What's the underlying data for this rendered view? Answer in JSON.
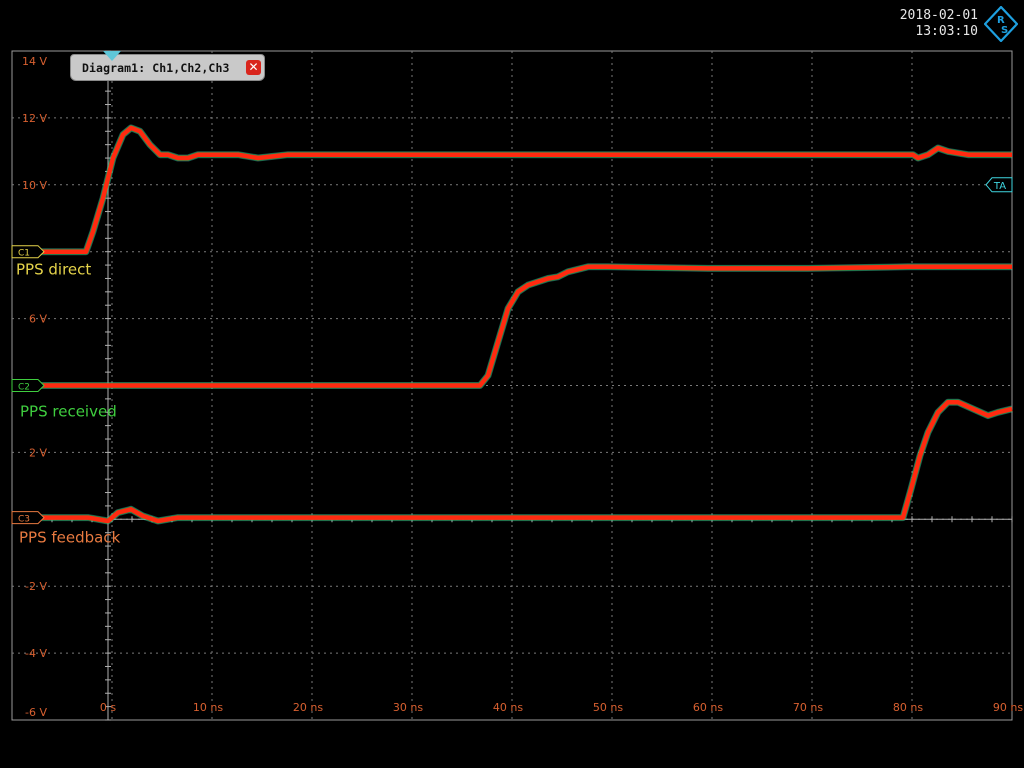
{
  "header": {
    "date": "2018-02-01",
    "time": "13:03:10",
    "logo_text": "R&S"
  },
  "diagram_tab": {
    "label": "Diagram1: Ch1,Ch2,Ch3",
    "close_icon": "close-icon"
  },
  "colors": {
    "trace": "#ff2a10",
    "ch1": "#e5d34a",
    "ch2": "#3fce3f",
    "ch3": "#e87a40",
    "trigger": "#3fd6e0",
    "grid": "#7a7a7a",
    "tick_label": "#d86030"
  },
  "markers": {
    "c1": "C1",
    "c2": "C2",
    "c3": "C3",
    "trigger": "TA"
  },
  "chart_data": {
    "type": "line",
    "title": "",
    "xlabel": "",
    "ylabel": "",
    "xlim": [
      -9.6,
      90.4
    ],
    "ylim": [
      -6,
      14
    ],
    "x_ticks": [
      0,
      10,
      20,
      30,
      40,
      50,
      60,
      70,
      80,
      90
    ],
    "x_tick_labels": [
      "0 s",
      "10 ns",
      "20 ns",
      "30 ns",
      "40 ns",
      "50 ns",
      "60 ns",
      "70 ns",
      "80 ns",
      "90 ns"
    ],
    "y_ticks": [
      14,
      12,
      10,
      6,
      2,
      -2,
      -4,
      -6
    ],
    "y_tick_labels": [
      "14 V",
      "12 V",
      "10 V",
      "6 V",
      "2 V",
      "-2 V",
      "-4 V",
      "-6 V"
    ],
    "grid": true,
    "series": [
      {
        "name": "PPS direct",
        "x": [
          -9.6,
          -2.2,
          -1.5,
          -0.5,
          0.5,
          1.5,
          2.3,
          3.2,
          4.2,
          5.2,
          6.0,
          7.0,
          8.0,
          9.0,
          10.5,
          13.0,
          15.0,
          18.0,
          20.0,
          30.0,
          50.0,
          70.0,
          80.5,
          81.0,
          82.0,
          83.0,
          84.0,
          86.0,
          88.0,
          90.4
        ],
        "y": [
          8.0,
          8.0,
          8.6,
          9.6,
          10.8,
          11.5,
          11.7,
          11.6,
          11.2,
          10.9,
          10.9,
          10.8,
          10.8,
          10.9,
          10.9,
          10.9,
          10.8,
          10.9,
          10.9,
          10.9,
          10.9,
          10.9,
          10.9,
          10.8,
          10.9,
          11.1,
          11.0,
          10.9,
          10.9,
          10.9
        ]
      },
      {
        "name": "PPS received",
        "x": [
          -9.6,
          37.2,
          38.0,
          39.0,
          40.0,
          41.0,
          42.0,
          43.0,
          44.0,
          45.0,
          46.0,
          48.0,
          50.0,
          60.0,
          70.0,
          80.0,
          90.4
        ],
        "y": [
          4.0,
          4.0,
          4.3,
          5.3,
          6.3,
          6.8,
          7.0,
          7.1,
          7.2,
          7.25,
          7.4,
          7.55,
          7.55,
          7.5,
          7.5,
          7.55,
          7.55
        ]
      },
      {
        "name": "PPS feedback",
        "x": [
          -9.6,
          -2.0,
          0.0,
          1.0,
          2.3,
          3.5,
          5.0,
          7.0,
          10.0,
          30.0,
          50.0,
          70.0,
          79.0,
          79.5,
          80.3,
          81.2,
          82.0,
          83.0,
          84.0,
          85.0,
          86.5,
          88.0,
          89.0,
          90.4
        ],
        "y": [
          0.05,
          0.05,
          -0.05,
          0.2,
          0.3,
          0.1,
          -0.05,
          0.05,
          0.05,
          0.05,
          0.05,
          0.05,
          0.05,
          0.05,
          0.9,
          1.9,
          2.6,
          3.2,
          3.5,
          3.5,
          3.3,
          3.1,
          3.2,
          3.3
        ]
      }
    ],
    "annotations": [
      "PPS direct",
      "PPS received",
      "PPS feedback"
    ]
  }
}
